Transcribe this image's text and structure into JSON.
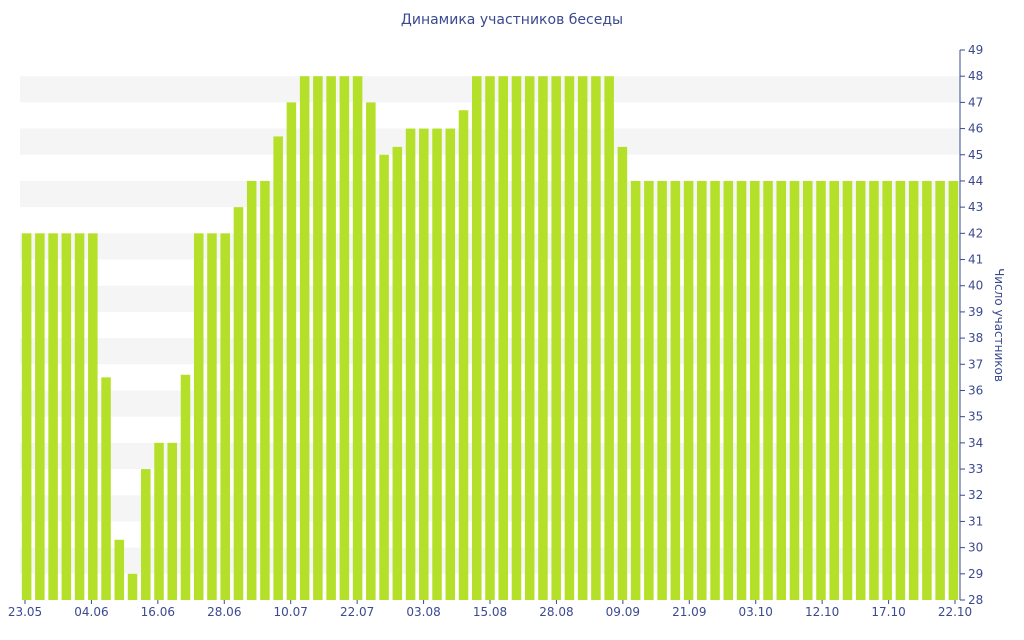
{
  "chart_data": {
    "type": "bar",
    "title": "Динамика участников беседы",
    "ylabel": "Число участников",
    "xlabel": "",
    "ylim": [
      28,
      49
    ],
    "yaxis_side": "right",
    "grid": "alternating-bands",
    "bar_color": "#b5e02a",
    "band_color": "#f5f5f5",
    "text_color": "#3b4a8f",
    "x_tick_labels": [
      "23.05",
      "04.06",
      "16.06",
      "28.06",
      "10.07",
      "22.07",
      "03.08",
      "15.08",
      "28.08",
      "09.09",
      "21.09",
      "03.10",
      "12.10",
      "17.10",
      "22.10"
    ],
    "values": [
      42,
      42,
      42,
      42,
      42,
      42,
      36.5,
      30.3,
      29,
      33,
      34,
      34,
      36.6,
      42,
      42,
      42,
      43,
      44,
      44,
      45.7,
      47,
      48,
      48,
      48,
      48,
      48,
      47,
      45,
      45.3,
      46,
      46,
      46,
      46,
      46.7,
      48,
      48,
      48,
      48,
      48,
      48,
      48,
      48,
      48,
      48,
      48,
      45.3,
      44,
      44,
      44,
      44,
      44,
      44,
      44,
      44,
      44,
      44,
      44,
      44,
      44,
      44,
      44,
      44,
      44,
      44,
      44,
      44,
      44,
      44,
      44,
      44,
      44
    ]
  }
}
